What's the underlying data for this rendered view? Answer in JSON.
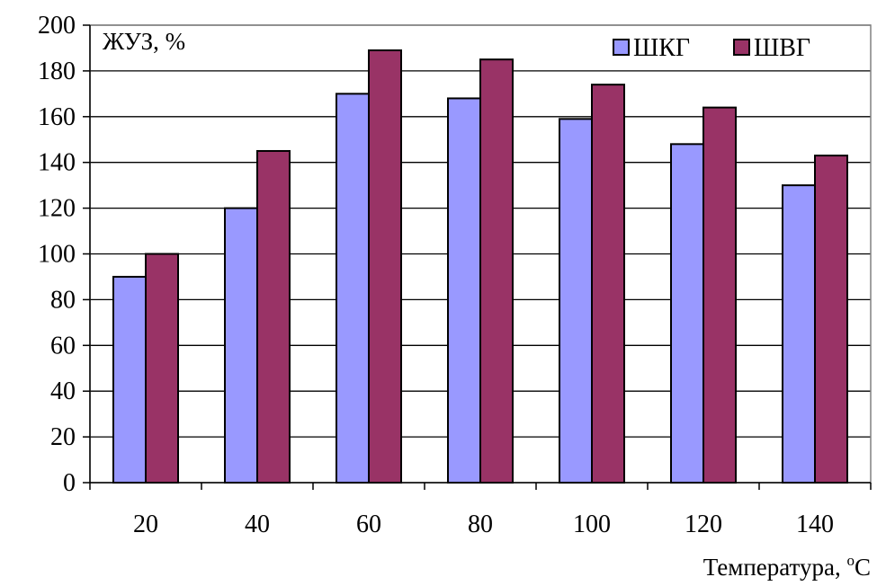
{
  "chart_data": {
    "type": "bar",
    "categories": [
      "20",
      "40",
      "60",
      "80",
      "100",
      "120",
      "140"
    ],
    "series": [
      {
        "name": "ШКГ",
        "color": "#9999ff",
        "values": [
          90,
          120,
          170,
          168,
          159,
          148,
          130
        ]
      },
      {
        "name": "ШВГ",
        "color": "#993366",
        "values": [
          100,
          145,
          189,
          185,
          174,
          164,
          143
        ]
      }
    ],
    "title": "",
    "xlabel": "Температура, ",
    "xlabel_unit": "oC",
    "ylabel": "ЖУЗ, %",
    "ylim": [
      0,
      200
    ],
    "yticks": [
      0,
      20,
      40,
      60,
      80,
      100,
      120,
      140,
      160,
      180,
      200
    ],
    "grid": true,
    "legend_position": "top-right"
  }
}
